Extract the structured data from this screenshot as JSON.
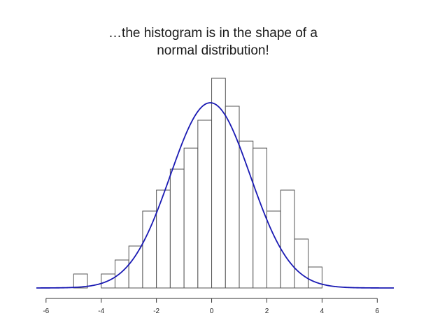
{
  "chart_data": {
    "type": "bar",
    "title_lines": [
      "…the histogram is in the shape of a",
      "normal distribution!"
    ],
    "bin_edges": [
      -5.0,
      -4.5,
      -4.0,
      -3.5,
      -3.0,
      -2.5,
      -2.0,
      -1.5,
      -1.0,
      -0.5,
      0.0,
      0.5,
      1.0,
      1.5,
      2.0,
      2.5,
      3.0,
      3.5,
      4.0
    ],
    "counts": [
      2,
      0,
      2,
      4,
      6,
      11,
      14,
      17,
      20,
      24,
      30,
      26,
      21,
      20,
      11,
      14,
      7,
      3,
      1
    ],
    "counts_note_units": "relative bar heights",
    "curve": {
      "type": "normal-density",
      "mean": -0.05,
      "sd": 1.45,
      "peak": 26.5,
      "color": "#1a1ab3"
    },
    "x_ticks": [
      "-6",
      "-4",
      "-2",
      "0",
      "2",
      "4",
      "6"
    ],
    "x_tick_values": [
      -6,
      -4,
      -2,
      0,
      2,
      4,
      6
    ],
    "xlim": [
      -6.35,
      6.6
    ],
    "ylim": [
      0,
      31
    ]
  }
}
